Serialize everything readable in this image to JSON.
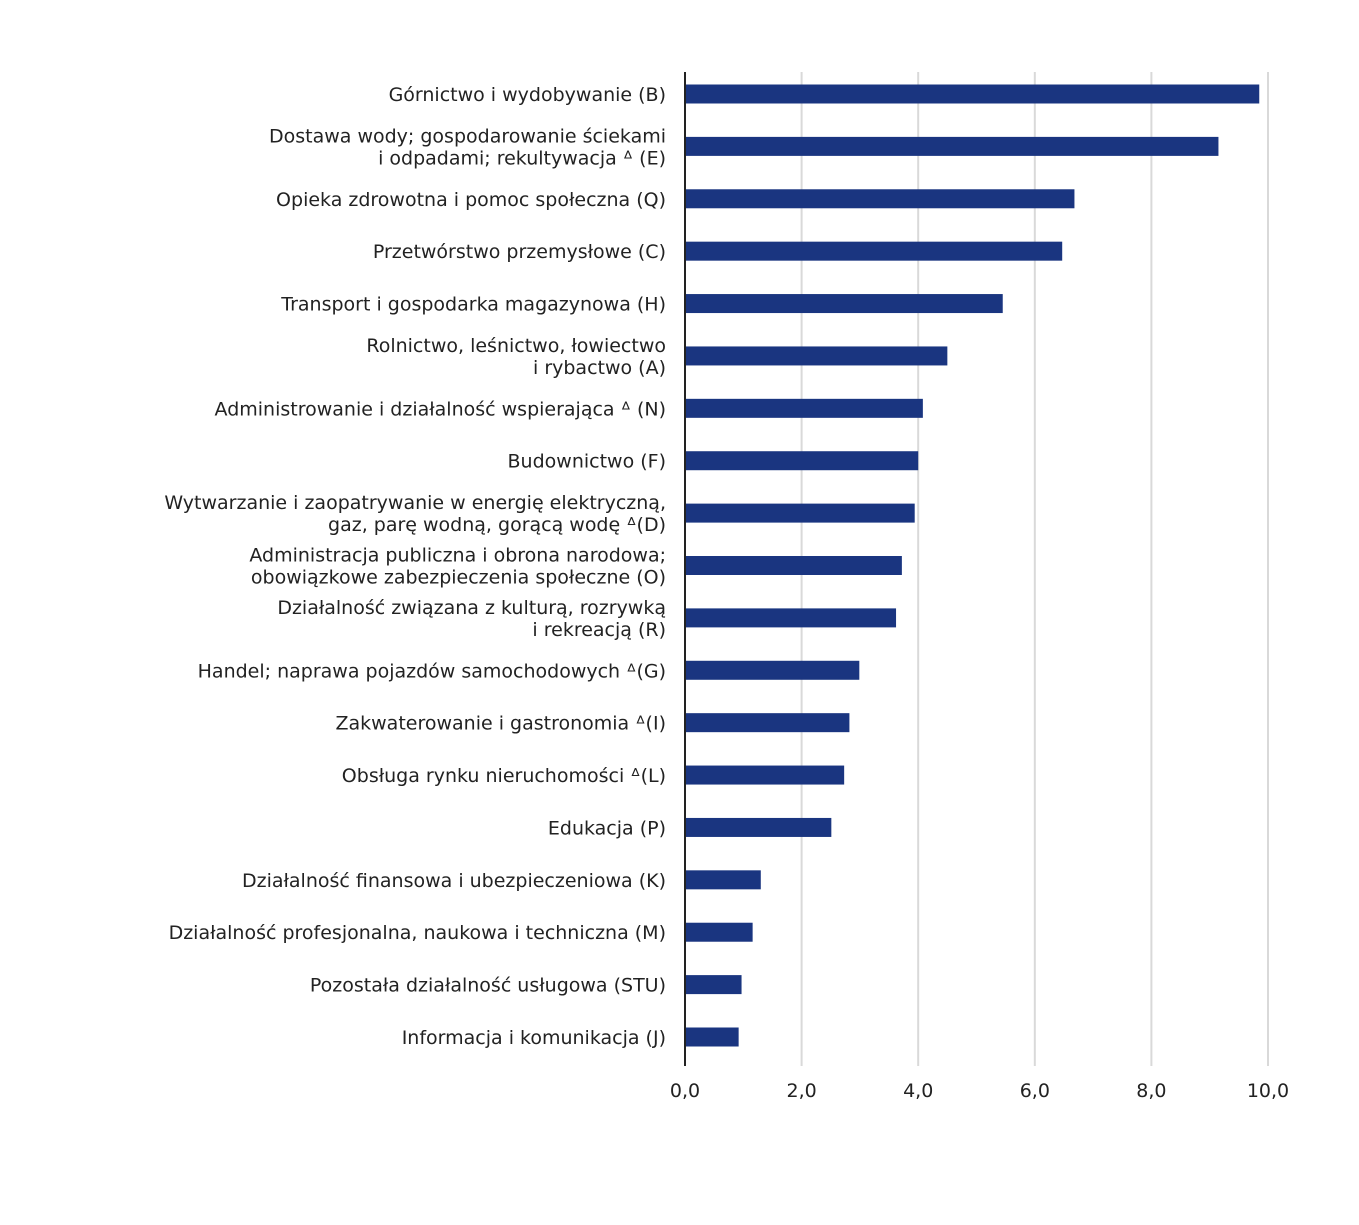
{
  "chart_data": {
    "type": "bar",
    "orientation": "horizontal",
    "title": "",
    "xlabel": "",
    "ylabel": "",
    "xlim": [
      0,
      10
    ],
    "xticks": [
      "0,0",
      "2,0",
      "4,0",
      "6,0",
      "8,0",
      "10,0"
    ],
    "grid": "vertical",
    "bar_color": "#1a3580",
    "categories": [
      [
        "Górnictwo i wydobywanie (B)"
      ],
      [
        "Dostawa wody; gospodarowanie ściekami",
        "i odpadami; rekultywacja ᐞ (E)"
      ],
      [
        "Opieka zdrowotna i pomoc społeczna (Q)"
      ],
      [
        "Przetwórstwo przemysłowe (C)"
      ],
      [
        "Transport i gospodarka magazynowa (H)"
      ],
      [
        "Rolnictwo, leśnictwo, łowiectwo",
        "i rybactwo (A)"
      ],
      [
        "Administrowanie i działalność wspierająca ᐞ (N)"
      ],
      [
        "Budownictwo (F)"
      ],
      [
        "Wytwarzanie i zaopatrywanie w energię elektryczną,",
        "gaz, parę wodną, gorącą wodę ᐞ(D)"
      ],
      [
        "Administracja publiczna i obrona narodowa;",
        "obowiązkowe zabezpieczenia społeczne (O)"
      ],
      [
        "Działalność związana z kulturą, rozrywką",
        "i rekreacją (R)"
      ],
      [
        "Handel; naprawa pojazdów samochodowych ᐞ(G)"
      ],
      [
        "Zakwaterowanie i gastronomia ᐞ(I)"
      ],
      [
        "Obsługa rynku nieruchomości ᐞ(L)"
      ],
      [
        "Edukacja (P)"
      ],
      [
        "Działalność finansowa i ubezpieczeniowa (K)"
      ],
      [
        "Działalność profesjonalna, naukowa i techniczna (M)"
      ],
      [
        "Pozostała działalność usługowa (STU)"
      ],
      [
        "Informacja i komunikacja (J)"
      ]
    ],
    "values": [
      9.85,
      9.15,
      6.68,
      6.47,
      5.45,
      4.5,
      4.08,
      4.0,
      3.94,
      3.72,
      3.62,
      2.99,
      2.82,
      2.73,
      2.51,
      1.3,
      1.16,
      0.97,
      0.92
    ]
  }
}
